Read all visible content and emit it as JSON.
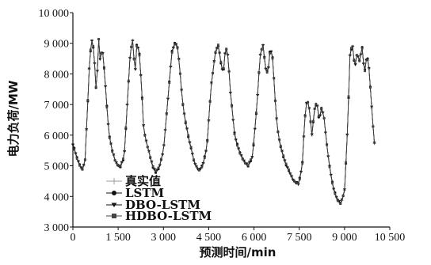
{
  "chart_data": {
    "type": "line",
    "title": "",
    "xlabel": "预测时间/min",
    "ylabel": "电力负荷/MW",
    "xlim": [
      0,
      10500
    ],
    "ylim": [
      3000,
      10000
    ],
    "xticks": [
      0,
      1500,
      3000,
      4500,
      6000,
      7500,
      9000,
      10500
    ],
    "xtick_labels": [
      "0",
      "1 500",
      "3 000",
      "4 500",
      "6 000",
      "7 500",
      "9 000",
      "10 500"
    ],
    "yticks": [
      3000,
      4000,
      5000,
      6000,
      7000,
      8000,
      9000,
      10000
    ],
    "ytick_labels": [
      "3 000",
      "4 000",
      "5 000",
      "6 000",
      "7 000",
      "8 000",
      "9 000",
      "10 000"
    ],
    "grid": false,
    "legend_position": "bottom-left",
    "series": [
      {
        "name": "真实值",
        "marker": "plus",
        "color": "#9a9a9a"
      },
      {
        "name": "LSTM",
        "marker": "circle",
        "color": "#111111"
      },
      {
        "name": "DBO-LSTM",
        "marker": "triangle-down",
        "color": "#111111"
      },
      {
        "name": "HDBO-LSTM",
        "marker": "square",
        "color": "#444444"
      }
    ],
    "shared_profile": {
      "x": [
        0,
        150,
        300,
        400,
        480,
        560,
        640,
        700,
        780,
        850,
        900,
        980,
        1060,
        1140,
        1200,
        1300,
        1420,
        1560,
        1700,
        1800,
        1900,
        1980,
        2060,
        2120,
        2200,
        2280,
        2340,
        2400,
        2480,
        2560,
        2640,
        2740,
        2860,
        3000,
        3150,
        3280,
        3380,
        3460,
        3540,
        3620,
        3700,
        3780,
        3860,
        3940,
        4000,
        4080,
        4180,
        4300,
        4440,
        4580,
        4720,
        4820,
        4900,
        4980,
        5060,
        5140,
        5220,
        5300,
        5360,
        5440,
        5540,
        5660,
        5800,
        5950,
        6100,
        6200,
        6300,
        6380,
        6460,
        6540,
        6620,
        6680,
        6740,
        6820,
        6920,
        7040,
        7180,
        7320,
        7480,
        7600,
        7680,
        7760,
        7840,
        7920,
        8000,
        8080,
        8160,
        8240,
        8320,
        8400,
        8500,
        8620,
        8750,
        8880,
        9000,
        9100,
        9180,
        9260,
        9340,
        9420,
        9500,
        9580,
        9660,
        9740,
        9800,
        9860,
        9920,
        10000
      ],
      "y": [
        5700,
        5200,
        4850,
        5100,
        6800,
        8600,
        9150,
        8700,
        7300,
        9200,
        8500,
        8800,
        7900,
        6700,
        6000,
        5500,
        5100,
        4950,
        5300,
        7000,
        8700,
        9100,
        8000,
        9000,
        8700,
        7500,
        6300,
        5900,
        5600,
        5300,
        5000,
        4800,
        4950,
        5500,
        7200,
        8700,
        9000,
        8900,
        8200,
        7200,
        6600,
        6200,
        5800,
        5500,
        5200,
        5000,
        4850,
        5000,
        5600,
        7600,
        8700,
        8950,
        8400,
        8000,
        8900,
        8600,
        7400,
        6600,
        6000,
        5700,
        5400,
        5150,
        5000,
        5300,
        7000,
        8600,
        8950,
        8200,
        8000,
        8850,
        8500,
        7500,
        6600,
        5900,
        5500,
        5100,
        4800,
        4500,
        4400,
        5000,
        6500,
        7200,
        6800,
        6000,
        6800,
        7100,
        6500,
        6900,
        6600,
        5800,
        5000,
        4300,
        3900,
        3750,
        4200,
        6200,
        8600,
        9000,
        8200,
        8700,
        8400,
        8900,
        8000,
        8600,
        8300,
        7500,
        6600,
        5600
      ]
    }
  }
}
